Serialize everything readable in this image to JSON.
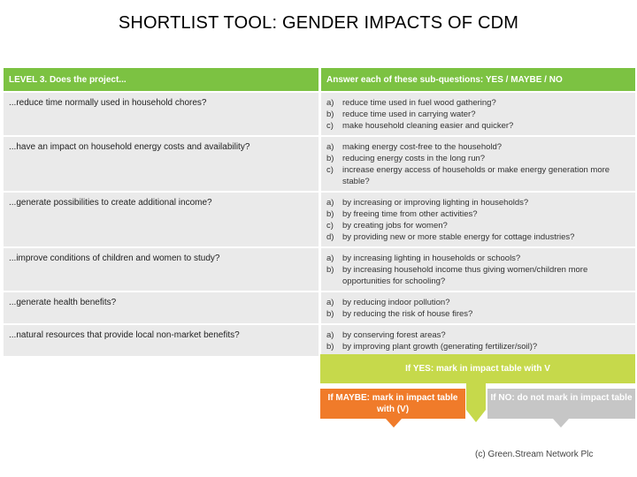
{
  "title": "SHORTLIST TOOL: GENDER IMPACTS OF CDM",
  "header": {
    "left": "LEVEL 3. Does the project...",
    "right": "Answer each of these sub-questions: YES / MAYBE / NO"
  },
  "rows": [
    {
      "question": "...reduce time normally used in household chores?",
      "subs": [
        {
          "l": "a)",
          "t": "reduce time used in fuel wood gathering?"
        },
        {
          "l": "b)",
          "t": "reduce time used in carrying water?"
        },
        {
          "l": "c)",
          "t": "make household cleaning easier and quicker?"
        }
      ]
    },
    {
      "question": "...have an impact on household energy costs and availability?",
      "subs": [
        {
          "l": "a)",
          "t": "making energy cost-free to the household?"
        },
        {
          "l": "b)",
          "t": "reducing energy costs in the long run?"
        },
        {
          "l": "c)",
          "t": "increase energy access of households or make energy generation more stable?"
        }
      ]
    },
    {
      "question": "...generate possibilities to create additional income?",
      "subs": [
        {
          "l": "a)",
          "t": "by increasing or improving lighting in households?"
        },
        {
          "l": "b)",
          "t": "by freeing time from other activities?"
        },
        {
          "l": "c)",
          "t": "by creating jobs for women?"
        },
        {
          "l": "d)",
          "t": "by providing new or more stable energy for cottage industries?"
        }
      ]
    },
    {
      "question": "...improve conditions of children and women to study?",
      "subs": [
        {
          "l": "a)",
          "t": "by increasing lighting in households or schools?"
        },
        {
          "l": "b)",
          "t": "by increasing household income thus giving women/children more opportunities for schooling?"
        }
      ]
    },
    {
      "question": "...generate health benefits?",
      "subs": [
        {
          "l": "a)",
          "t": "by reducing indoor pollution?"
        },
        {
          "l": "b)",
          "t": "by reducing the risk of house fires?"
        }
      ]
    },
    {
      "question": "...natural resources that provide local non-market benefits?",
      "subs": [
        {
          "l": "a)",
          "t": "by conserving forest areas?"
        },
        {
          "l": "b)",
          "t": "by improving plant growth (generating fertilizer/soil)?"
        }
      ]
    }
  ],
  "flow": {
    "yes": "If YES: mark in impact table with V",
    "maybe": "If MAYBE: mark in impact table with (V)",
    "no": "If NO: do not mark in impact table"
  },
  "colors": {
    "header_green": "#7cc242",
    "yes_green": "#c6d94b",
    "maybe_orange": "#f07b2a",
    "no_grey": "#c6c6c6",
    "row_grey": "#eaeaea"
  },
  "copyright": "(c) Green.Stream Network Plc"
}
